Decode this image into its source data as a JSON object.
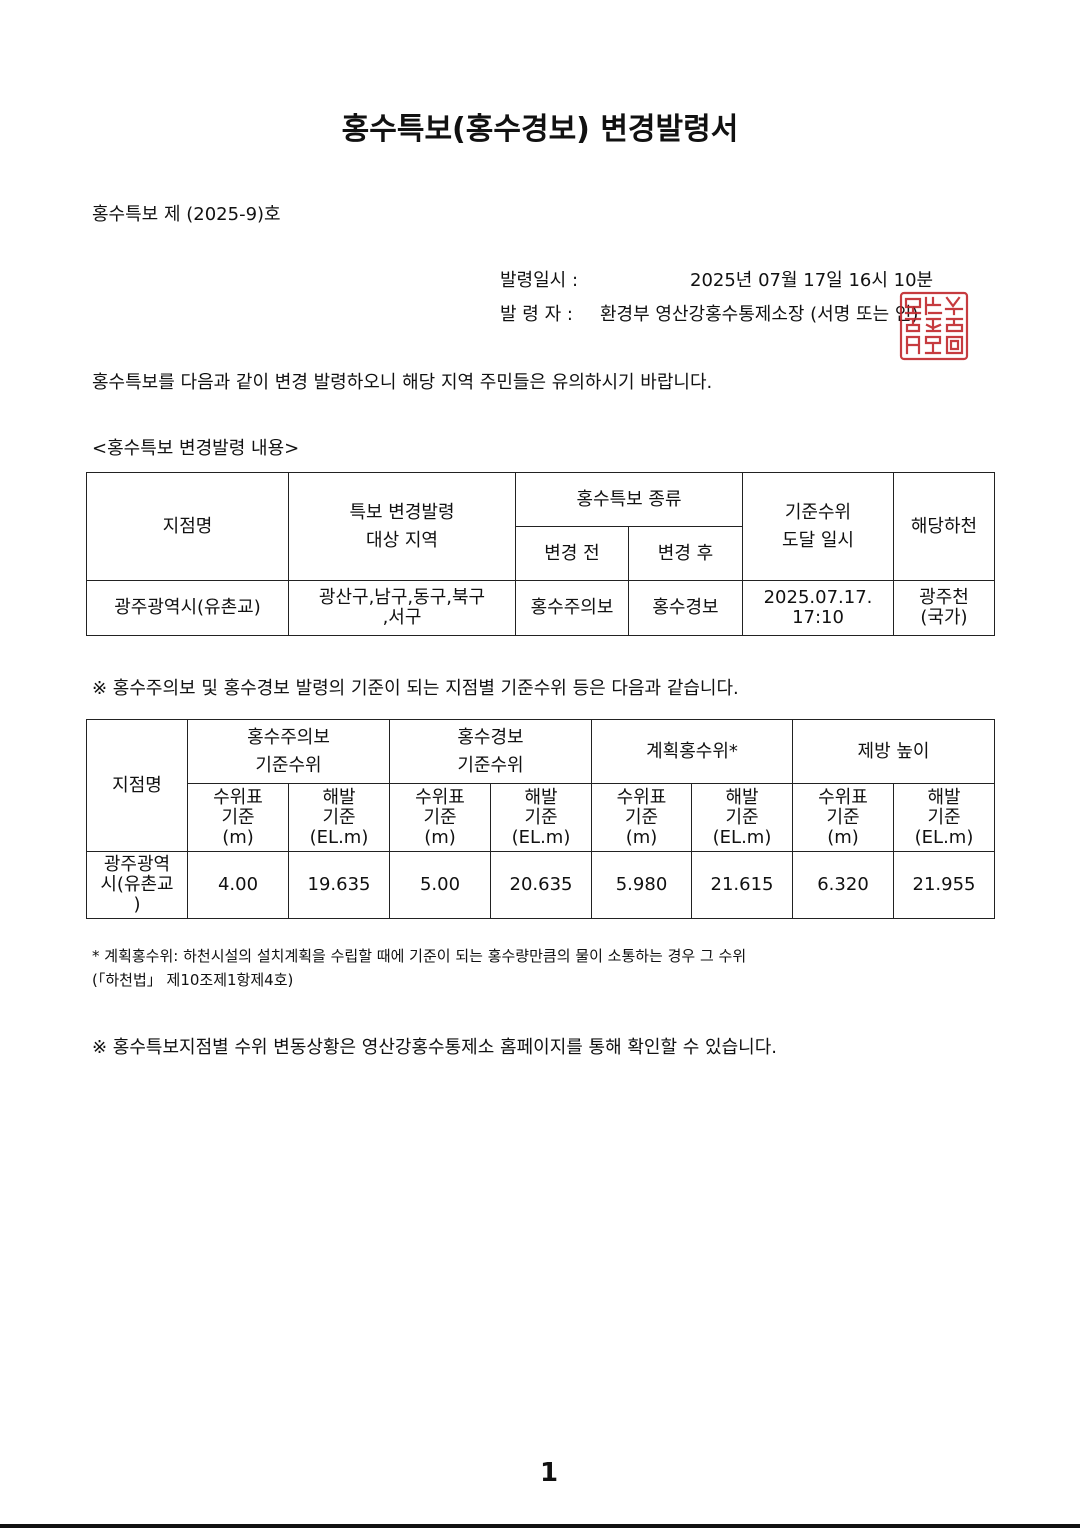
{
  "title": "홍수특보(홍수경보) 변경발령서",
  "doc_number": "홍수특보 제 (2025-9)호",
  "issue": {
    "datetime_label": "발령일시 :",
    "datetime_value": "2025년 07월 17일 16시 10분",
    "issuer_label": "발 령 자  :",
    "issuer_value": "환경부 영산강홍수통제소장 (서명 또는 인)",
    "stamp_text": "영산강홍수통제소장인",
    "stamp_color": "#c0262b"
  },
  "intro": "홍수특보를 다음과 같이 변경 발령하오니 해당 지역 주민들은 유의하시기 바랍니다.",
  "section_heading": "<홍수특보 변경발령 내용>",
  "table1": {
    "headers": {
      "station": "지점명",
      "area_line1": "특보 변경발령",
      "area_line2": "대상 지역",
      "type": "홍수특보 종류",
      "before": "변경 전",
      "after": "변경 후",
      "reach_line1": "기준수위",
      "reach_line2": "도달 일시",
      "river": "해당하천"
    },
    "row": {
      "station": "광주광역시(유촌교)",
      "area_line1": "광산구,남구,동구,북구",
      "area_line2": ",서구",
      "before": "홍수주의보",
      "after": "홍수경보",
      "reach_line1": "2025.07.17.",
      "reach_line2": "17:10",
      "river_line1": "광주천",
      "river_line2": "(국가)"
    }
  },
  "note1": "※ 홍수주의보 및 홍수경보 발령의 기준이 되는 지점별 기준수위 등은 다음과 같습니다.",
  "table2": {
    "station_header": "지점명",
    "groups": [
      {
        "line1": "홍수주의보",
        "line2": "기준수위"
      },
      {
        "line1": "홍수경보",
        "line2": "기준수위"
      },
      {
        "line1": "계획홍수위*",
        "line2": ""
      },
      {
        "line1": "제방 높이",
        "line2": ""
      }
    ],
    "sub_staff": [
      "수위표",
      "기준",
      "(m)"
    ],
    "sub_el": [
      "해발",
      "기준",
      "(EL.m)"
    ],
    "row_station": [
      "광주광역",
      "시(유촌교",
      ")"
    ],
    "values": [
      "4.00",
      "19.635",
      "5.00",
      "20.635",
      "5.980",
      "21.615",
      "6.320",
      "21.955"
    ]
  },
  "footnote_line1": "* 계획홍수위: 하천시설의 설치계획을 수립할 때에 기준이 되는 홍수량만큼의 물이 소통하는 경우 그 수위",
  "footnote_line2": "(「하천법」 제10조제1항제4호)",
  "note2": "※ 홍수특보지점별 수위 변동상황은 영산강홍수통제소 홈페이지를 통해 확인할 수 있습니다.",
  "page_number": "1"
}
